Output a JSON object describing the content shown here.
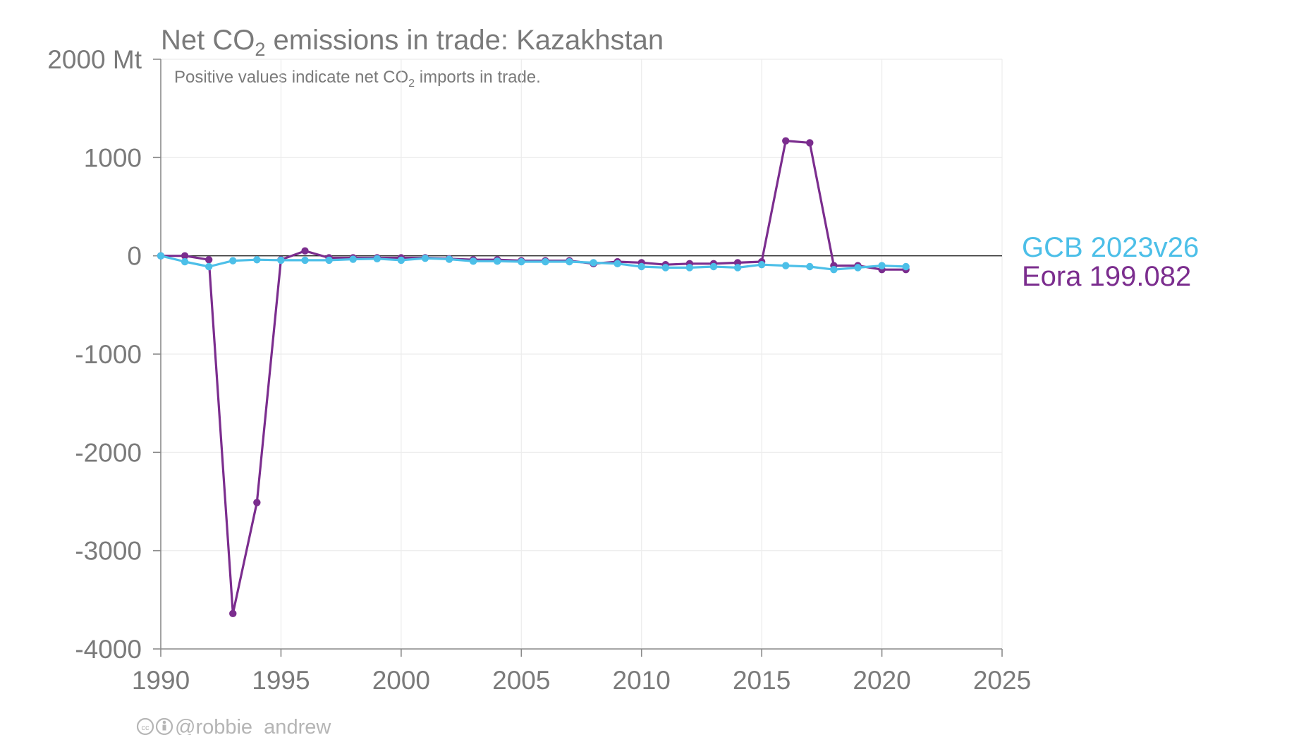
{
  "chart_data": {
    "type": "line",
    "title": {
      "pre": "Net CO",
      "sub": "2",
      "post": " emissions in trade: Kazakhstan"
    },
    "subtitle": {
      "pre": "Positive values indicate net CO",
      "sub": "2",
      "post": " imports in trade."
    },
    "xlim": [
      1990,
      2025
    ],
    "ylim": [
      -4000,
      2000
    ],
    "x_ticks": [
      1990,
      1995,
      2000,
      2005,
      2010,
      2015,
      2020,
      2025
    ],
    "y_ticks": [
      {
        "value": 2000,
        "label": "2000 Mt"
      },
      {
        "value": 1000,
        "label": "1000"
      },
      {
        "value": 0,
        "label": "0"
      },
      {
        "value": -1000,
        "label": "-1000"
      },
      {
        "value": -2000,
        "label": "-2000"
      },
      {
        "value": -3000,
        "label": "-3000"
      },
      {
        "value": -4000,
        "label": "-4000"
      }
    ],
    "grid": true,
    "legend_position": "right",
    "series": [
      {
        "name": "Eora 199.082",
        "color": "#7b2d8e",
        "x": [
          1990,
          1991,
          1992,
          1993,
          1994,
          1995,
          1996,
          1997,
          1998,
          1999,
          2000,
          2001,
          2002,
          2003,
          2004,
          2005,
          2006,
          2007,
          2008,
          2009,
          2010,
          2011,
          2012,
          2013,
          2014,
          2015,
          2016,
          2017,
          2018,
          2019,
          2020,
          2021
        ],
        "y": [
          0,
          0,
          -40,
          -3640,
          -2510,
          -40,
          50,
          -20,
          -20,
          -20,
          -20,
          -20,
          -30,
          -40,
          -40,
          -50,
          -50,
          -50,
          -80,
          -60,
          -70,
          -90,
          -80,
          -80,
          -70,
          -60,
          1170,
          1150,
          -100,
          -100,
          -140,
          -140
        ]
      },
      {
        "name": "GCB 2023v26",
        "color": "#4cbfe8",
        "x": [
          1990,
          1991,
          1992,
          1993,
          1994,
          1995,
          1996,
          1997,
          1998,
          1999,
          2000,
          2001,
          2002,
          2003,
          2004,
          2005,
          2006,
          2007,
          2008,
          2009,
          2010,
          2011,
          2012,
          2013,
          2014,
          2015,
          2016,
          2017,
          2018,
          2019,
          2020,
          2021
        ],
        "y": [
          0,
          -60,
          -110,
          -50,
          -40,
          -45,
          -45,
          -45,
          -35,
          -30,
          -45,
          -25,
          -35,
          -55,
          -55,
          -60,
          -60,
          -60,
          -70,
          -80,
          -110,
          -120,
          -120,
          -110,
          -120,
          -90,
          -100,
          -110,
          -140,
          -120,
          -100,
          -110
        ]
      }
    ]
  },
  "credit": {
    "icons": [
      "creative-commons-icon",
      "attribution-icon"
    ],
    "handle": "@robbie_andrew"
  }
}
